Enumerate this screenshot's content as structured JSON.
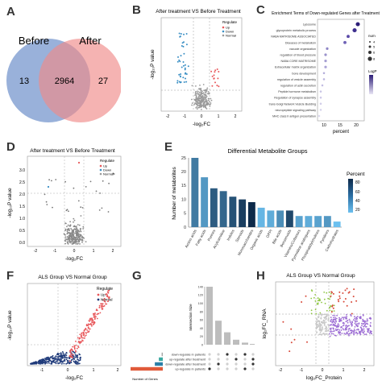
{
  "panels": {
    "A": {
      "label": "A",
      "venn": {
        "left_title": "Before",
        "right_title": "After",
        "left_only": "13",
        "both": "2964",
        "right_only": "27",
        "left_color": "#7f9ed1",
        "right_color": "#ef8b89"
      }
    },
    "B": {
      "label": "B",
      "title": "After treatment VS Before Treatment",
      "xlabel": "-log₂FC",
      "ylabel": "-log₁₀P value",
      "xticks": [
        "-2",
        "-1",
        "0",
        "1",
        "2"
      ],
      "legend_title": "Regulate",
      "legend": [
        "Up",
        "Down",
        "Normal"
      ]
    },
    "C": {
      "label": "C",
      "title": "Enrichment Terms of Down-regulated Genes after Treatment",
      "terms": [
        "Lysosome",
        "glycoprotein metabolic process",
        "NABA MATRISOME ASSOCIATED",
        "Diseases of metabolism",
        "vacuole organization",
        "regulation of blood pressure",
        "NABA CORE MATRISOME",
        "Extracellular matrix organization",
        "bone development",
        "regulation of vesicle assembly",
        "regulation of actin secretion",
        "Peptide hormone metabolism",
        "Regulation of synapse assembly",
        "trans-Golgi Network Vesicle Budding",
        "neuropeptide signaling pathway",
        "MHC class II antigen presentation"
      ],
      "xlabel": "percent",
      "xticks": [
        "10",
        "15",
        "20"
      ],
      "legend_title": "num",
      "legend_sizes": [
        "4",
        "5",
        "6",
        "8"
      ],
      "color_title": "LogP"
    },
    "D": {
      "label": "D",
      "title": "After treatment VS Before Treatment",
      "xlabel": "-log₂FC",
      "ylabel": "-log₁₀P value",
      "yticks": [
        "0.0",
        "0.5",
        "1.0",
        "1.5",
        "2.0",
        "2.5",
        "3.0"
      ],
      "xticks": [
        "-2",
        "-1",
        "0",
        "1",
        "2"
      ],
      "legend_title": "Regulate",
      "legend": [
        "Up",
        "Down",
        "Normal"
      ]
    },
    "E": {
      "label": "E",
      "chart_data": {
        "type": "bar",
        "title": "Differential Metabolite Groups",
        "ylabel": "Number of metabolites",
        "xlabel": "",
        "categories": [
          "Amino acids",
          "Fatty acids",
          "Purines",
          "Acylcarnitine",
          "Indoles",
          "Steroids",
          "Monosaccharides",
          "Organic acids",
          "OPPI",
          "Bile acids",
          "Benzenoids",
          "Vitamins/Cofactors",
          "Pyrimidine analogues",
          "Phosphatidylcholines",
          "Pyridines",
          "Carbohydrates"
        ],
        "values": [
          25,
          18,
          14,
          13,
          11,
          10,
          9,
          7,
          6,
          6,
          6,
          4,
          4,
          4,
          4,
          2
        ],
        "percent": [
          45,
          30,
          60,
          55,
          65,
          75,
          85,
          15,
          20,
          35,
          70,
          25,
          20,
          25,
          30,
          10
        ],
        "ylim": [
          0,
          25
        ],
        "yticks": [
          "0",
          "5",
          "10",
          "15",
          "20",
          "25"
        ],
        "legend_title": "Percent",
        "legend_ticks": [
          "20",
          "40",
          "60",
          "80"
        ]
      }
    },
    "F": {
      "label": "F",
      "title": "ALS Group VS Normal Group",
      "xlabel": "-log₂FC",
      "ylabel": "-log₁₀P value",
      "xticks": [
        "-1",
        "0",
        "1",
        "2"
      ],
      "legend_title": "Regulate",
      "legend": [
        "Up",
        "Normal"
      ]
    },
    "G": {
      "label": "G",
      "chart_data": {
        "type": "bar",
        "ylabel": "Intersection Size",
        "yticks": [
          "0",
          "20",
          "40",
          "60",
          "80",
          "100",
          "120",
          "140"
        ],
        "intersections": [
          140,
          58,
          30,
          12,
          5,
          2
        ],
        "sets": [
          "down-regulate in patients",
          "up-regulate after treatment",
          "down-regulate after treatment",
          "up-regulate in patients"
        ],
        "set_sizes": [
          5,
          18,
          36,
          146
        ],
        "set_colors": [
          "#a5a5a5",
          "#3aa9a1",
          "#2b7fa8",
          "#e05a3a"
        ],
        "set_xlabel": "Number of Genes"
      }
    },
    "H": {
      "label": "H",
      "title": "ALS Group VS Normal Group",
      "xlabel": "log₂FC_Protein",
      "ylabel": "log₂FC_RNA",
      "xticks": [
        "-2",
        "-1",
        "0",
        "1",
        "2"
      ],
      "colors": {
        "both": "#d84a3a",
        "rna": "#8dc641",
        "protein": "#9b6bd3",
        "none": "#c8c8c8"
      }
    }
  }
}
